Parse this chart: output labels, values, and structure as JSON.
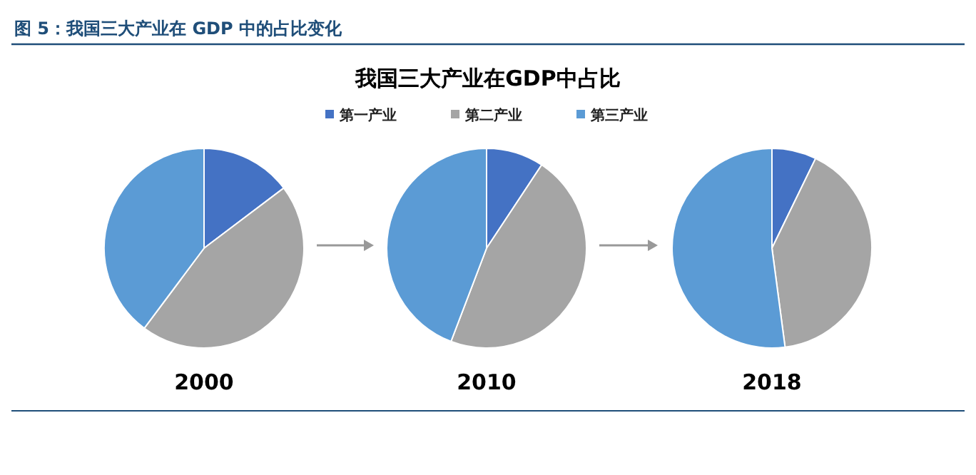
{
  "chart_data": [
    {
      "type": "pie",
      "title": "图 5：我国三大产业在 GDP 中的占比变化",
      "xlabel": "2000",
      "categories": [
        null,
        null,
        null
      ],
      "values": [
        14.7,
        45.5,
        39.8
      ],
      "colors": [
        "#4472c4",
        "#a5a5a5",
        "#5b9bd5"
      ]
    },
    {
      "type": "pie",
      "subtitle": "我国三大产业在GDP中占比",
      "xlabel": "2010",
      "legend": "top",
      "categories": [
        "第一产业",
        "第二产业",
        "第三产业"
      ],
      "values": [
        9.3,
        46.5,
        44.2
      ],
      "colors": [
        "#4472c4",
        "#a5a5a5",
        "#5b9bd5"
      ]
    },
    {
      "type": "pie",
      "xlabel": "2018",
      "categories": [
        null,
        null,
        null
      ],
      "values": [
        7.2,
        40.7,
        52.1
      ],
      "colors": [
        "#4472c4",
        "#a5a5a5",
        "#5b9bd5"
      ]
    }
  ]
}
